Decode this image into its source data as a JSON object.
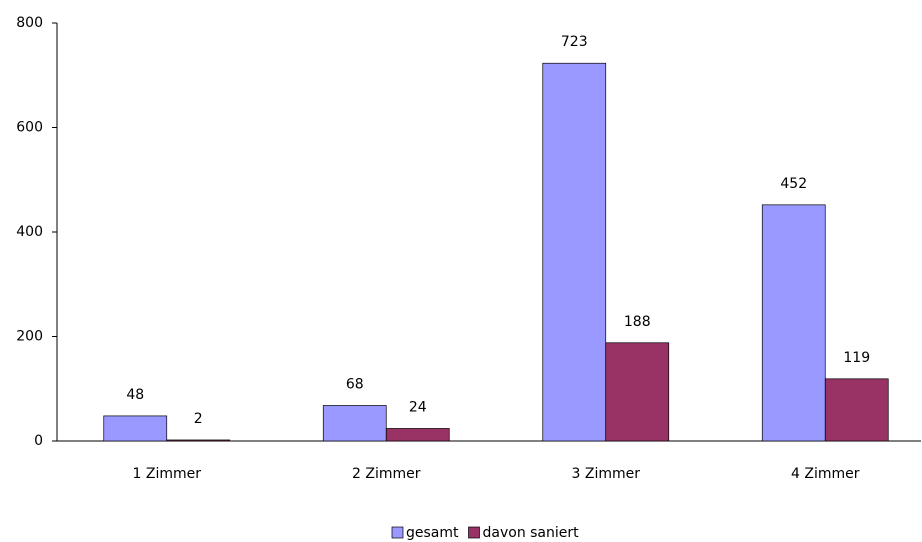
{
  "chart_data": {
    "type": "bar",
    "categories": [
      "1 Zimmer",
      "2 Zimmer",
      "3 Zimmer",
      "4 Zimmer"
    ],
    "series": [
      {
        "name": "gesamt",
        "color": "#9999ff",
        "values": [
          48,
          68,
          723,
          452
        ]
      },
      {
        "name": "davon saniert",
        "color": "#993366",
        "values": [
          2,
          24,
          188,
          119
        ]
      }
    ],
    "ylim": [
      0,
      800
    ],
    "yticks": [
      0,
      200,
      400,
      600,
      800
    ],
    "grid": false,
    "legend": "bottom"
  }
}
